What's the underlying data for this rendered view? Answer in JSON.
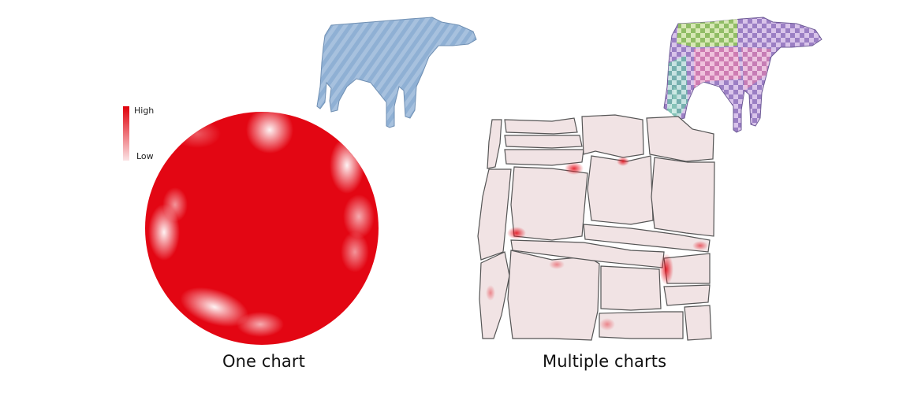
{
  "legend": {
    "high_label": "High",
    "low_label": "Low",
    "high_color": "#e0000a",
    "low_color": "#fbe4e6"
  },
  "panels": [
    {
      "caption": "One chart",
      "heatmap_color": "#e30613",
      "model_color": "#a9c4e0",
      "model_texture": "blue-stripe-pattern"
    },
    {
      "caption": "Multiple charts",
      "heatmap_color": "#f1e3e4",
      "model_color": "#c9a0d8",
      "model_texture": "multicolor-checkerboard"
    }
  ]
}
